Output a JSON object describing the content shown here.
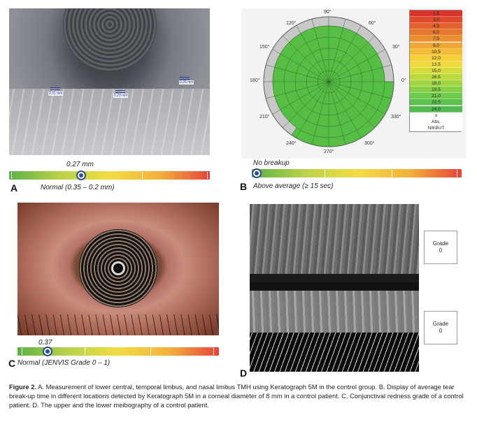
{
  "panelA": {
    "letter": "A",
    "value": "0.27 mm",
    "normal": "Normal (0.35 – 0.2 mm)",
    "knob_fraction": 0.36,
    "measurements": [
      "0.31 mm",
      "0.23 mm",
      "0.26 mm"
    ]
  },
  "panelB": {
    "letter": "B",
    "status": "No breakup",
    "verdict": "Above average (≥ 15 sec)",
    "knob_fraction": 0.0,
    "angles": [
      "90°",
      "60°",
      "30°",
      "0°",
      "330°",
      "300°",
      "270°",
      "240°",
      "210°",
      "180°",
      "150°",
      "120°"
    ],
    "legend": [
      "1,5",
      "3,0",
      "4,5",
      "6,0",
      "7,5",
      "9,0",
      "10,5",
      "12,0",
      "13,5",
      "15,0",
      "16,5",
      "18,0",
      "19,5",
      "21,0",
      "22,5",
      "24,0",
      "s",
      "Abs.",
      "NIKBUT"
    ],
    "legend_colors": [
      "#d9332c",
      "#dd4a2c",
      "#e2612c",
      "#e6782c",
      "#ea8f2e",
      "#eea532",
      "#f1bb36",
      "#f3d03a",
      "#efdc3c",
      "#d6dc3e",
      "#bcd940",
      "#a2d544",
      "#88cf48",
      "#6fc94c",
      "#5cc14f",
      "#53b94e",
      "#ffffff",
      "#ffffff",
      "#ffffff"
    ]
  },
  "panelC": {
    "letter": "C",
    "value": "0.37",
    "normal": "Normal (JENVIS Grade 0 – 1)",
    "knob_fraction": 0.15
  },
  "panelD": {
    "letter": "D",
    "upper_grade_label": "Grade",
    "upper_grade_value": "0",
    "lower_grade_label": "Grade",
    "lower_grade_value": "0"
  },
  "caption": {
    "lead": "Figure 2.",
    "text": " A. Measurement of lower central, temporal limbus, and nasal limbus TMH using Keratograph 5M in the control group. B. Display of average tear break-up time in different locations detected by Keratograph 5M in a corneal diameter of 8 mm in a control patient. C. Conjunctival redness grade of a control patient. D. The upper and the lower meibography of a control patient."
  },
  "colors": {
    "scale_gradient": [
      "#5bb247",
      "#b9d24a",
      "#f2dc44",
      "#f3b13c",
      "#e5433a"
    ],
    "knob": "#2b4c8f",
    "map_green": "#56be45",
    "map_grey": "#c8c8c8"
  }
}
